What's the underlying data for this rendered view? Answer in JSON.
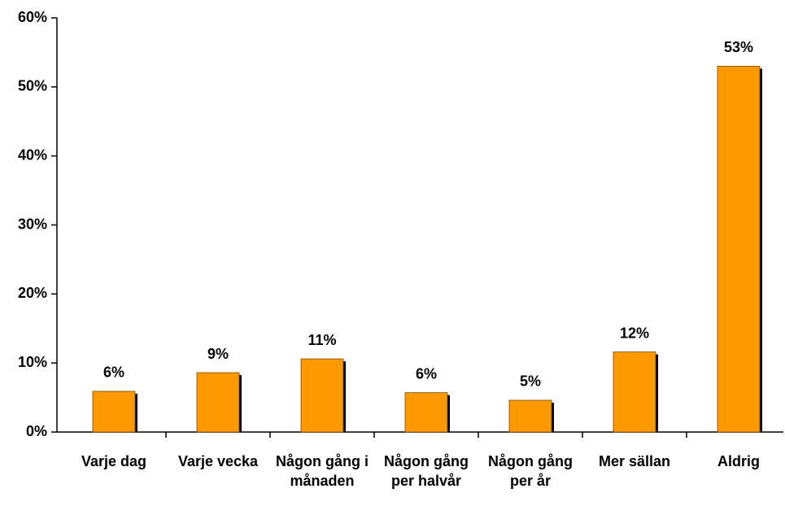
{
  "chart_data": {
    "type": "bar",
    "categories": [
      "Varje dag",
      "Varje vecka",
      "Någon gång i månaden",
      "Någon gång per halvår",
      "Någon gång per år",
      "Mer sällan",
      "Aldrig"
    ],
    "values": [
      5.9,
      8.6,
      10.6,
      5.7,
      4.6,
      11.6,
      53
    ],
    "value_labels": [
      "6%",
      "9%",
      "11%",
      "6%",
      "5%",
      "12%",
      "53%"
    ],
    "color": "#ff9900",
    "ylim": [
      0,
      60
    ],
    "yticks": [
      {
        "value": 0,
        "label": "0%"
      },
      {
        "value": 10,
        "label": "10%"
      },
      {
        "value": 20,
        "label": "20%"
      },
      {
        "value": 30,
        "label": "30%"
      },
      {
        "value": 40,
        "label": "40%"
      },
      {
        "value": 50,
        "label": "50%"
      },
      {
        "value": 60,
        "label": "60%"
      }
    ],
    "grid": false
  }
}
